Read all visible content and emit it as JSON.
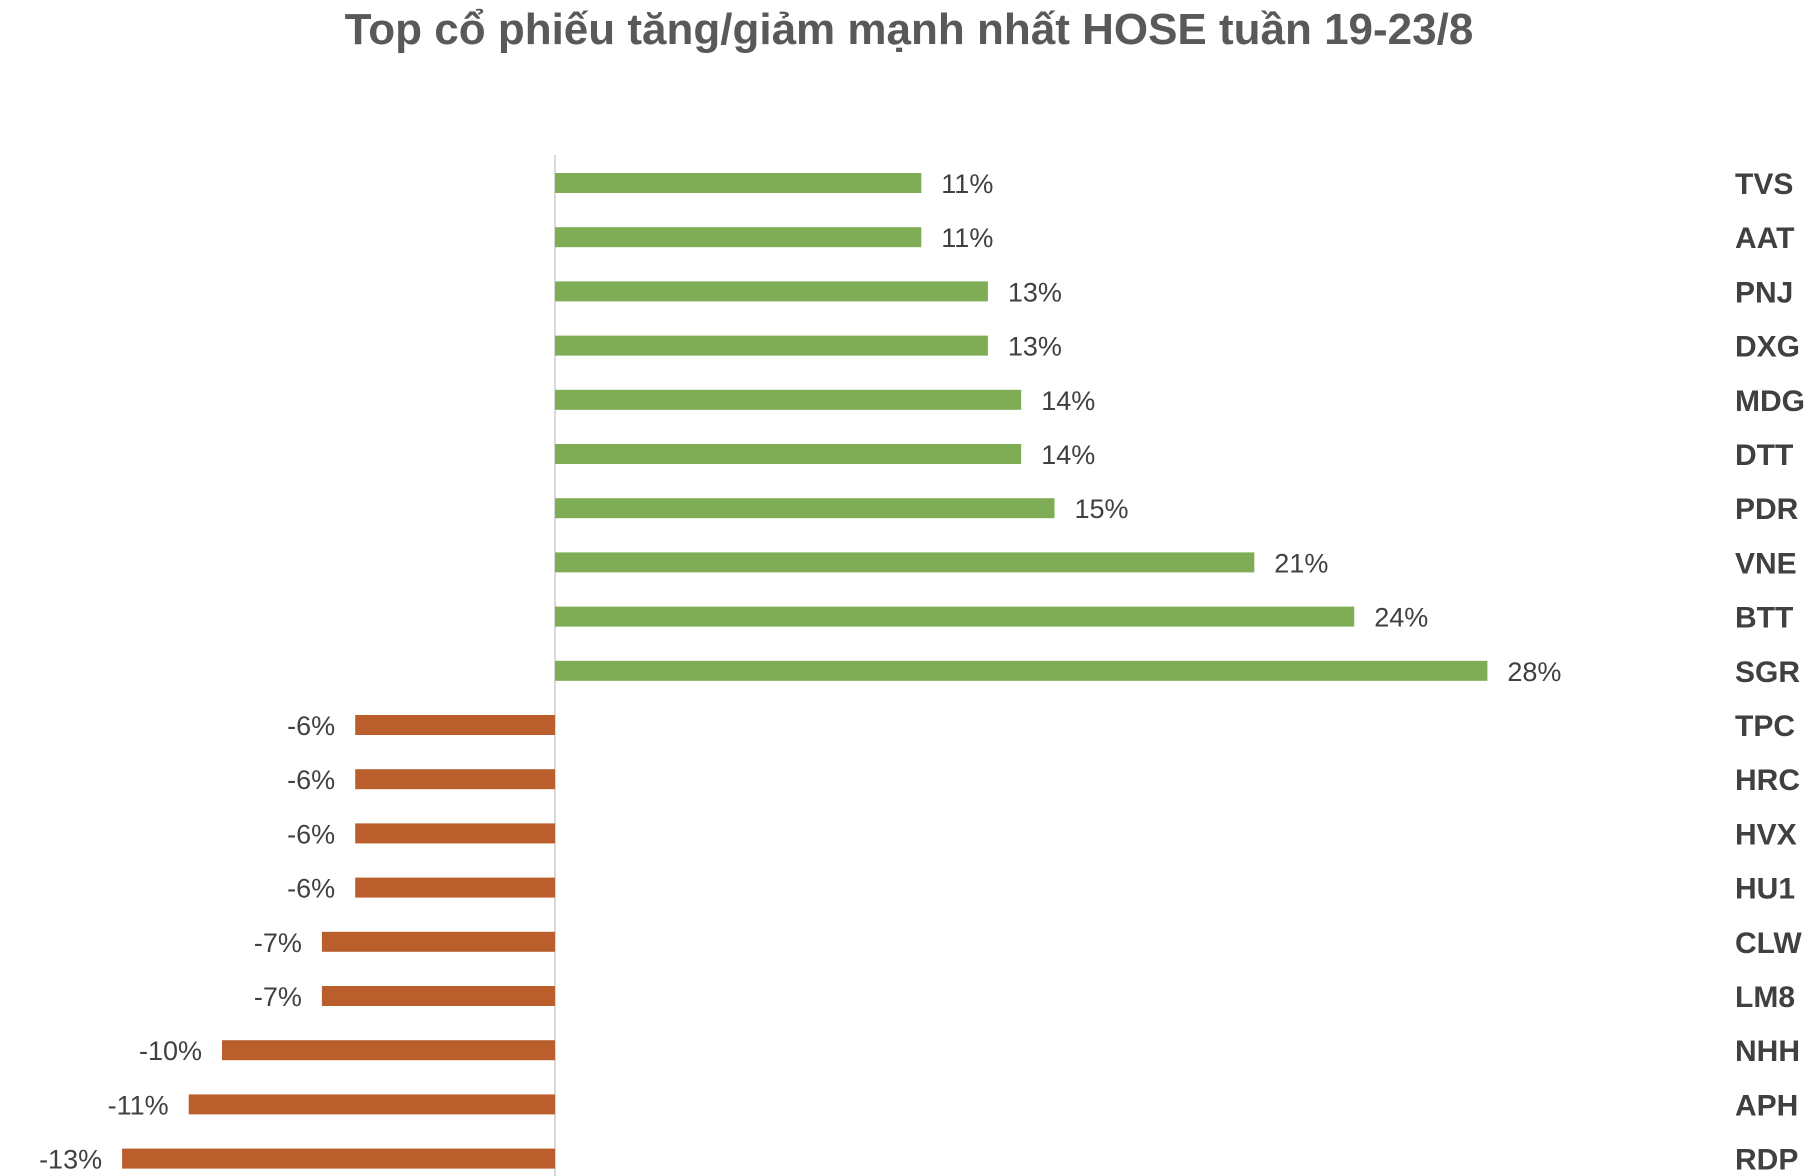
{
  "chart_data": {
    "type": "bar",
    "orientation": "horizontal",
    "title": "Top cổ phiếu tăng/giảm mạnh nhất HOSE tuần 19-23/8",
    "categories": [
      "TVS",
      "AAT",
      "PNJ",
      "DXG",
      "MDG",
      "DTT",
      "PDR",
      "VNE",
      "BTT",
      "SGR",
      "TPC",
      "HRC",
      "HVX",
      "HU1",
      "CLW",
      "LM8",
      "NHH",
      "APH",
      "RDP"
    ],
    "values": [
      11,
      11,
      13,
      13,
      14,
      14,
      15,
      21,
      24,
      28,
      -6,
      -6,
      -6,
      -6,
      -7,
      -7,
      -10,
      -11,
      -13
    ],
    "value_labels": [
      "11%",
      "11%",
      "13%",
      "13%",
      "14%",
      "14%",
      "15%",
      "21%",
      "24%",
      "28%",
      "-6%",
      "-6%",
      "-6%",
      "-6%",
      "-7%",
      "-7%",
      "-10%",
      "-11%",
      "-13%"
    ],
    "unit": "%",
    "colors": {
      "positive": "#7fad55",
      "negative": "#ba5f2c",
      "axis": "#d9d9d9"
    },
    "grid": false,
    "legend": "none"
  }
}
